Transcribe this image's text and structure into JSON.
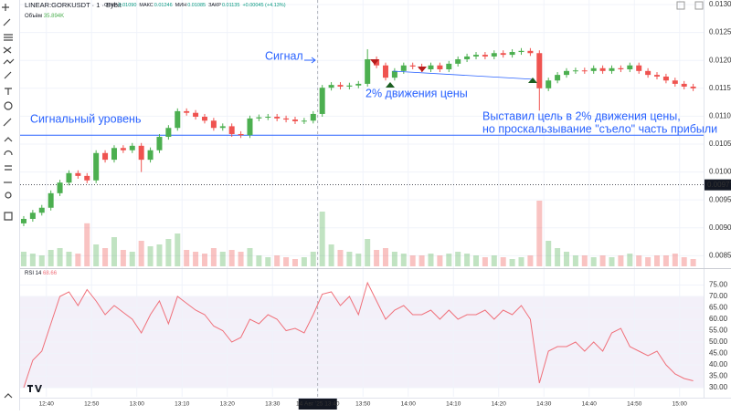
{
  "header": {
    "symbol": "LINEAR:GORKUSDT · 1 · Bybit",
    "ohlc": [
      {
        "label": "ОТКР",
        "value": "0.01090"
      },
      {
        "label": "МАКС",
        "value": "0.01246"
      },
      {
        "label": "МИН",
        "value": "0.01085"
      },
      {
        "label": "ЗАКР",
        "value": "0.01135"
      }
    ],
    "change": "+0.00045 (+4.13%)",
    "volume_label": "Объём",
    "volume_value": "35.894K",
    "rsi_label": "RSI 14",
    "rsi_value": "68.66"
  },
  "annotations": {
    "signal": "Сигнал",
    "move": "2% движения цены",
    "level": "Сигнальный уровень",
    "target_1": "Выставил цель в 2% движения цены,",
    "target_2": "но проскальзывание \"съело\" часть прибыли"
  },
  "chart_data": {
    "type": "candlestick",
    "grid": true,
    "up_color": "#4caf50",
    "down_color": "#ef5350",
    "rsi_color": "#f0707a",
    "level_color": "#2962ff",
    "open": [
      0.00908,
      0.00916,
      0.00927,
      0.00936,
      0.00962,
      0.00981,
      0.00998,
      0.00993,
      0.00985,
      0.01034,
      0.01022,
      0.01043,
      0.01039,
      0.01047,
      0.01022,
      0.01039,
      0.01063,
      0.01079,
      0.01109,
      0.01106,
      0.01099,
      0.01092,
      0.01079,
      0.01082,
      0.01068,
      0.01066,
      0.01096,
      0.01098,
      0.01099,
      0.01096,
      0.01094,
      0.01091,
      0.01092,
      0.01104,
      0.01151,
      0.01156,
      0.01153,
      0.01155,
      0.01158,
      0.01202,
      0.01191,
      0.01169,
      0.01181,
      0.01191,
      0.01189,
      0.01184,
      0.01191,
      0.01184,
      0.01194,
      0.01202,
      0.01207,
      0.0121,
      0.01207,
      0.01213,
      0.0121,
      0.01215,
      0.01217,
      0.01213,
      0.0115,
      0.01164,
      0.01174,
      0.01181,
      0.01182,
      0.01181,
      0.01186,
      0.01181,
      0.01186,
      0.01184,
      0.01191,
      0.01181,
      0.01174,
      0.01171,
      0.01164,
      0.01158,
      0.01153
    ],
    "high": [
      0.00921,
      0.00932,
      0.00941,
      0.00967,
      0.00986,
      0.01003,
      0.01003,
      0.00998,
      0.01039,
      0.01039,
      0.01048,
      0.01048,
      0.01052,
      0.01052,
      0.01044,
      0.01068,
      0.01084,
      0.01114,
      0.01114,
      0.01111,
      0.01104,
      0.01097,
      0.01087,
      0.01087,
      0.01073,
      0.01101,
      0.01103,
      0.01104,
      0.01104,
      0.01101,
      0.01099,
      0.01097,
      0.01109,
      0.01156,
      0.01161,
      0.01161,
      0.0116,
      0.01163,
      0.0122,
      0.01207,
      0.01196,
      0.01186,
      0.01196,
      0.01196,
      0.01194,
      0.01196,
      0.01196,
      0.01199,
      0.01207,
      0.01212,
      0.01215,
      0.01215,
      0.01218,
      0.01218,
      0.0122,
      0.01222,
      0.01222,
      0.01218,
      0.01169,
      0.01179,
      0.01186,
      0.01187,
      0.01187,
      0.01191,
      0.01191,
      0.01191,
      0.01191,
      0.01196,
      0.01196,
      0.01186,
      0.01179,
      0.01176,
      0.01169,
      0.01163,
      0.01158
    ],
    "low": [
      0.00903,
      0.00911,
      0.00922,
      0.00931,
      0.00957,
      0.00976,
      0.00988,
      0.0098,
      0.0098,
      0.01017,
      0.01017,
      0.01034,
      0.01034,
      0.01,
      0.01017,
      0.01034,
      0.01058,
      0.01074,
      0.01101,
      0.01094,
      0.01087,
      0.01074,
      0.01074,
      0.01063,
      0.01061,
      0.01061,
      0.01091,
      0.01093,
      0.01091,
      0.01089,
      0.01086,
      0.01086,
      0.01087,
      0.01099,
      0.01146,
      0.01148,
      0.01148,
      0.0115,
      0.01153,
      0.01186,
      0.01164,
      0.01164,
      0.01176,
      0.01184,
      0.01179,
      0.01179,
      0.01179,
      0.01179,
      0.01189,
      0.01197,
      0.01202,
      0.01202,
      0.01202,
      0.01205,
      0.01205,
      0.0121,
      0.01208,
      0.0111,
      0.01145,
      0.01159,
      0.01169,
      0.01176,
      0.01176,
      0.01176,
      0.01176,
      0.01176,
      0.01179,
      0.01179,
      0.01176,
      0.01169,
      0.01166,
      0.01159,
      0.01153,
      0.01148,
      0.01145
    ],
    "close": [
      0.00916,
      0.00927,
      0.00936,
      0.00962,
      0.00981,
      0.00998,
      0.00993,
      0.00985,
      0.01034,
      0.01022,
      0.01043,
      0.01039,
      0.01047,
      0.01022,
      0.01039,
      0.01063,
      0.01079,
      0.01109,
      0.01106,
      0.01099,
      0.01092,
      0.01079,
      0.01082,
      0.01068,
      0.01066,
      0.01096,
      0.01098,
      0.01099,
      0.01096,
      0.01094,
      0.01091,
      0.01092,
      0.01104,
      0.01151,
      0.01156,
      0.01153,
      0.01155,
      0.01158,
      0.01202,
      0.01191,
      0.01169,
      0.01181,
      0.01191,
      0.01189,
      0.01184,
      0.01191,
      0.01184,
      0.01194,
      0.01202,
      0.01207,
      0.0121,
      0.01207,
      0.01213,
      0.0121,
      0.01215,
      0.01217,
      0.01213,
      0.0115,
      0.01164,
      0.01174,
      0.01181,
      0.01182,
      0.01181,
      0.01186,
      0.01181,
      0.01186,
      0.01184,
      0.01191,
      0.01181,
      0.01174,
      0.01171,
      0.01164,
      0.01158,
      0.01153,
      0.0115
    ],
    "volume": [
      40,
      35,
      30,
      45,
      50,
      40,
      35,
      118,
      60,
      50,
      80,
      45,
      40,
      70,
      55,
      60,
      75,
      90,
      45,
      40,
      35,
      50,
      40,
      45,
      40,
      50,
      30,
      25,
      30,
      25,
      20,
      25,
      40,
      150,
      60,
      45,
      40,
      35,
      75,
      45,
      50,
      40,
      35,
      30,
      30,
      35,
      30,
      35,
      40,
      35,
      30,
      25,
      30,
      25,
      20,
      25,
      30,
      180,
      70,
      50,
      40,
      30,
      30,
      25,
      30,
      25,
      30,
      35,
      30,
      25,
      30,
      30,
      35,
      25,
      20
    ],
    "vlim": [
      0,
      200
    ],
    "rsi": [
      30,
      42,
      46,
      58,
      70,
      72,
      66,
      73,
      68,
      62,
      66,
      63,
      60,
      54,
      62,
      68,
      58,
      70,
      67,
      64,
      62,
      57,
      55,
      50,
      52,
      60,
      58,
      62,
      60,
      55,
      56,
      54,
      62,
      71,
      72,
      66,
      70,
      62,
      76,
      68,
      60,
      64,
      66,
      62,
      62,
      64,
      60,
      64,
      60,
      62,
      62,
      64,
      60,
      64,
      62,
      66,
      60,
      32,
      46,
      48,
      48,
      50,
      46,
      50,
      46,
      54,
      56,
      48,
      46,
      44,
      46,
      40,
      36,
      34,
      33
    ],
    "rsi_ylim": [
      26,
      82
    ],
    "rsi_band": [
      30,
      70
    ],
    "rsi_mid": 50,
    "rsi_yticks": [
      {
        "value": 75,
        "label": "75.00"
      },
      {
        "value": 70,
        "label": "70.00"
      },
      {
        "value": 65,
        "label": "65.00"
      },
      {
        "value": 60,
        "label": "60.00"
      },
      {
        "value": 55,
        "label": "55.00"
      },
      {
        "value": 50,
        "label": "50.00"
      },
      {
        "value": 45,
        "label": "45.00"
      },
      {
        "value": 40,
        "label": "40.00"
      },
      {
        "value": 35,
        "label": "35.00"
      },
      {
        "value": 30,
        "label": "30.00"
      }
    ],
    "ylim": [
      0.00831,
      0.013082
    ],
    "yticks": [
      {
        "value": 0.013,
        "label": "0.01300"
      },
      {
        "value": 0.0125,
        "label": "0.01250"
      },
      {
        "value": 0.012,
        "label": "0.01200"
      },
      {
        "value": 0.0115,
        "label": "0.01150"
      },
      {
        "value": 0.011,
        "label": "0.01100"
      },
      {
        "value": 0.0105,
        "label": "0.01050"
      },
      {
        "value": 0.01,
        "label": "0.01000"
      },
      {
        "value": 0.0095,
        "label": "0.00950"
      },
      {
        "value": 0.009,
        "label": "0.00900"
      },
      {
        "value": 0.0085,
        "label": "0.00850"
      }
    ],
    "price_badge": {
      "value": 0.00977,
      "label": "0.00977"
    },
    "signal_level": 0.01066,
    "xlim": [
      -0.4,
      75.15
    ],
    "xticks": [
      {
        "value": 2.5,
        "label": "12:40"
      },
      {
        "value": 7.5,
        "label": "12:50"
      },
      {
        "value": 12.5,
        "label": "13:00"
      },
      {
        "value": 17.5,
        "label": "13:10"
      },
      {
        "value": 22.5,
        "label": "13:20"
      },
      {
        "value": 27.5,
        "label": "13:30"
      },
      {
        "value": 32.5,
        "label": "14 Авг '25  13:40",
        "highlight": true
      },
      {
        "value": 37.5,
        "label": "13:50"
      },
      {
        "value": 42.5,
        "label": "14:00"
      },
      {
        "value": 47.5,
        "label": "14:10"
      },
      {
        "value": 52.5,
        "label": "14:20"
      },
      {
        "value": 57.5,
        "label": "14:30"
      },
      {
        "value": 62.5,
        "label": "14:40"
      },
      {
        "value": 67.5,
        "label": "14:50"
      },
      {
        "value": 72.5,
        "label": "15:00"
      }
    ]
  }
}
